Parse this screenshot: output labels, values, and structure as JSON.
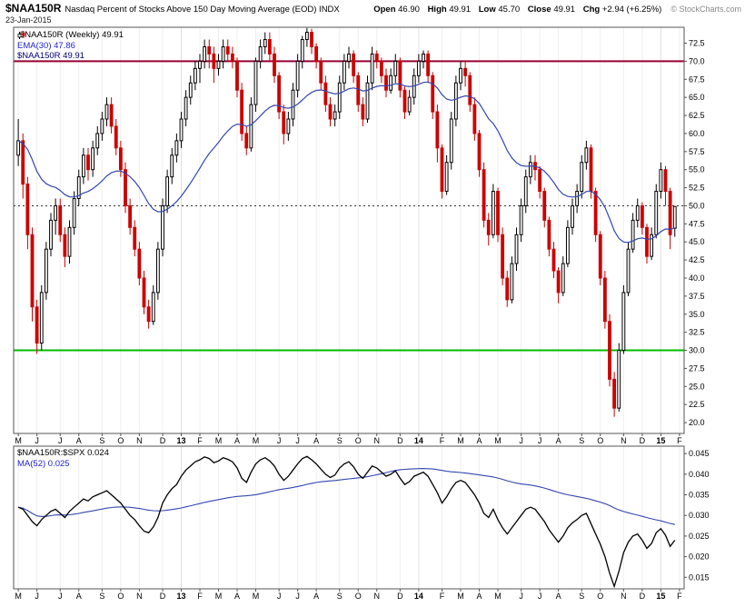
{
  "header": {
    "symbol": "$NAA150R",
    "title": "Nasdaq Percent of Stocks Above 150 Day Moving Average (EOD) INDX",
    "date": "23-Jan-2015",
    "copyright": "© StockCharts.com",
    "quote": {
      "open_label": "Open",
      "open": "46.90",
      "high_label": "High",
      "high": "49.91",
      "low_label": "Low",
      "low": "45.70",
      "close_label": "Close",
      "close": "49.91",
      "chg_label": "Chg",
      "chg": "+2.94 (+6.25%)"
    }
  },
  "main_panel": {
    "legend": [
      {
        "text": "$NAA150R (Weekly) 49.91",
        "color": "#000000"
      },
      {
        "text": "EMA(30) 47.86",
        "color": "#2222cc"
      },
      {
        "text": "$NAA150R 49.91",
        "color": "#000077"
      }
    ]
  },
  "ratio_panel": {
    "legend": [
      {
        "text": "$NAA150R:$SPX 0.024",
        "color": "#000000"
      },
      {
        "text": "MA(52) 0.025",
        "color": "#2222cc"
      }
    ]
  },
  "months": [
    {
      "label": "M",
      "week": 0
    },
    {
      "label": "J",
      "week": 4
    },
    {
      "label": "J",
      "week": 9
    },
    {
      "label": "A",
      "week": 13
    },
    {
      "label": "S",
      "week": 18
    },
    {
      "label": "O",
      "week": 22
    },
    {
      "label": "N",
      "week": 26
    },
    {
      "label": "D",
      "week": 31
    },
    {
      "label": "13",
      "week": 35,
      "bold": true
    },
    {
      "label": "F",
      "week": 39
    },
    {
      "label": "M",
      "week": 43
    },
    {
      "label": "A",
      "week": 47
    },
    {
      "label": "M",
      "week": 51
    },
    {
      "label": "J",
      "week": 56
    },
    {
      "label": "J",
      "week": 60
    },
    {
      "label": "A",
      "week": 64
    },
    {
      "label": "S",
      "week": 69
    },
    {
      "label": "O",
      "week": 73
    },
    {
      "label": "N",
      "week": 77
    },
    {
      "label": "D",
      "week": 82
    },
    {
      "label": "14",
      "week": 86,
      "bold": true
    },
    {
      "label": "F",
      "week": 91
    },
    {
      "label": "M",
      "week": 95
    },
    {
      "label": "A",
      "week": 99
    },
    {
      "label": "M",
      "week": 103
    },
    {
      "label": "J",
      "week": 108
    },
    {
      "label": "J",
      "week": 112
    },
    {
      "label": "A",
      "week": 116
    },
    {
      "label": "S",
      "week": 121
    },
    {
      "label": "O",
      "week": 125
    },
    {
      "label": "N",
      "week": 130
    },
    {
      "label": "D",
      "week": 134
    },
    {
      "label": "15",
      "week": 138,
      "bold": true
    },
    {
      "label": "F",
      "week": 142
    }
  ],
  "chart_data": [
    {
      "type": "candlestick",
      "name": "$NAA150R Weekly",
      "last_close": 49.91,
      "ema_period": 30,
      "ema_last": 47.86,
      "ylim": [
        18.5,
        74.7
      ],
      "yticks": [
        72.5,
        70.0,
        67.5,
        65.0,
        62.5,
        60.0,
        57.5,
        55.0,
        52.5,
        50.0,
        47.5,
        45.0,
        42.5,
        40.0,
        37.5,
        35.0,
        32.5,
        30.0,
        27.5,
        25.0,
        22.5,
        20.0
      ],
      "hlines": [
        {
          "value": 70,
          "color": "#990033",
          "width": 2,
          "dash": ""
        },
        {
          "value": 50,
          "color": "#333333",
          "width": 1,
          "dash": "2,3"
        },
        {
          "value": 30,
          "color": "#00bb00",
          "width": 2,
          "dash": ""
        }
      ],
      "colors": {
        "up": "#000000",
        "up_fill": "#ffffff",
        "down": "#cc0000",
        "ema": "#3347b0"
      },
      "ohlc": [
        [
          57,
          62,
          55.5,
          59
        ],
        [
          59,
          60,
          51,
          53
        ],
        [
          53,
          54,
          44,
          46
        ],
        [
          46,
          47,
          34,
          36
        ],
        [
          36,
          37,
          29.5,
          31
        ],
        [
          31,
          39,
          30,
          38
        ],
        [
          38,
          45,
          37,
          44
        ],
        [
          44,
          49,
          43,
          48
        ],
        [
          48,
          51,
          46,
          50
        ],
        [
          50,
          51,
          45,
          46
        ],
        [
          46,
          47,
          41.5,
          43
        ],
        [
          43,
          48,
          42,
          47
        ],
        [
          47,
          52,
          46,
          51
        ],
        [
          51,
          55,
          50,
          54
        ],
        [
          54,
          58,
          53,
          57
        ],
        [
          57,
          58,
          53.5,
          55
        ],
        [
          55,
          59,
          54,
          58
        ],
        [
          58,
          61,
          57,
          60
        ],
        [
          60,
          63,
          59,
          62
        ],
        [
          62,
          65,
          61,
          64
        ],
        [
          64,
          65,
          60,
          61
        ],
        [
          61,
          62,
          57,
          58
        ],
        [
          58,
          59,
          54,
          55
        ],
        [
          55,
          56,
          49,
          50
        ],
        [
          50,
          51,
          46,
          47
        ],
        [
          47,
          48,
          43,
          44
        ],
        [
          44,
          45,
          39,
          40
        ],
        [
          40,
          41,
          35,
          36
        ],
        [
          36,
          37,
          33,
          34
        ],
        [
          34,
          39,
          33.5,
          38
        ],
        [
          38,
          45,
          37,
          44
        ],
        [
          44,
          51,
          43,
          50
        ],
        [
          50,
          55,
          49,
          54
        ],
        [
          54,
          58,
          53,
          57
        ],
        [
          57,
          60,
          56,
          59
        ],
        [
          59,
          63,
          58,
          62
        ],
        [
          62,
          66,
          61,
          65
        ],
        [
          65,
          68,
          64,
          67
        ],
        [
          67,
          70,
          66,
          69
        ],
        [
          69,
          71,
          67,
          70
        ],
        [
          70,
          73,
          69,
          72
        ],
        [
          72,
          73,
          69,
          71
        ],
        [
          71,
          72,
          67,
          69
        ],
        [
          69,
          71,
          68,
          70
        ],
        [
          70,
          73,
          69,
          72
        ],
        [
          72,
          73,
          70,
          71
        ],
        [
          71,
          72,
          69,
          70
        ],
        [
          70,
          70.5,
          65,
          66
        ],
        [
          66,
          67,
          59,
          60
        ],
        [
          60,
          61,
          57,
          58
        ],
        [
          58,
          65,
          57.5,
          64
        ],
        [
          64,
          70.5,
          63,
          70
        ],
        [
          70,
          73,
          69,
          72
        ],
        [
          72,
          74,
          71,
          73
        ],
        [
          73,
          74,
          70,
          71
        ],
        [
          71,
          72,
          67,
          68
        ],
        [
          68,
          68.5,
          62,
          63
        ],
        [
          63,
          64,
          58.5,
          60
        ],
        [
          60,
          63,
          59,
          62
        ],
        [
          62,
          67,
          61,
          66
        ],
        [
          66,
          71,
          65,
          70
        ],
        [
          70,
          73.5,
          69,
          73
        ],
        [
          73,
          74.6,
          72,
          74
        ],
        [
          74,
          74.5,
          71,
          72
        ],
        [
          72,
          72.5,
          69,
          70
        ],
        [
          70,
          70.5,
          66,
          67
        ],
        [
          67,
          68,
          63,
          64
        ],
        [
          64,
          65,
          61,
          62
        ],
        [
          62,
          64,
          61,
          63
        ],
        [
          63,
          68,
          62,
          67
        ],
        [
          67,
          71,
          66,
          70
        ],
        [
          70,
          72,
          69,
          71
        ],
        [
          71,
          71.5,
          67,
          68
        ],
        [
          68,
          68.5,
          63,
          64
        ],
        [
          64,
          65,
          61,
          62
        ],
        [
          62,
          68,
          61.5,
          67
        ],
        [
          67,
          72,
          66,
          71
        ],
        [
          71,
          71.5,
          69,
          70
        ],
        [
          70,
          70.5,
          67,
          68
        ],
        [
          68,
          69,
          65,
          66
        ],
        [
          66,
          69,
          65.5,
          68
        ],
        [
          68,
          71,
          67,
          70
        ],
        [
          70,
          70.5,
          65,
          66
        ],
        [
          66,
          66.5,
          62,
          63
        ],
        [
          63,
          66,
          62.5,
          65
        ],
        [
          65,
          69,
          64,
          68
        ],
        [
          68,
          71,
          67,
          70
        ],
        [
          70,
          71.5,
          69,
          71
        ],
        [
          71,
          71.5,
          67,
          68
        ],
        [
          68,
          68.5,
          62,
          63
        ],
        [
          63,
          64,
          56,
          58
        ],
        [
          58,
          58.5,
          51,
          52
        ],
        [
          52,
          57,
          51.5,
          56
        ],
        [
          56,
          63,
          55,
          62
        ],
        [
          62,
          68,
          61,
          67
        ],
        [
          67,
          70,
          66,
          69
        ],
        [
          69,
          70,
          66.5,
          68
        ],
        [
          68,
          68.5,
          63,
          64
        ],
        [
          64,
          65,
          59,
          60
        ],
        [
          60,
          60.5,
          54,
          55
        ],
        [
          55,
          56,
          47,
          48
        ],
        [
          48,
          49,
          44.5,
          46
        ],
        [
          46,
          53,
          45.5,
          52
        ],
        [
          52,
          52.5,
          45,
          46
        ],
        [
          46,
          47,
          39,
          40
        ],
        [
          40,
          41,
          36,
          37
        ],
        [
          37,
          43,
          36.5,
          42
        ],
        [
          42,
          47,
          41,
          46
        ],
        [
          46,
          51,
          45,
          50
        ],
        [
          50,
          55,
          49,
          54
        ],
        [
          54,
          57,
          53,
          56
        ],
        [
          56,
          57,
          53.5,
          55
        ],
        [
          55,
          55.5,
          51,
          52
        ],
        [
          52,
          52.5,
          47,
          48
        ],
        [
          48,
          48.5,
          43,
          44
        ],
        [
          44,
          45,
          40,
          41
        ],
        [
          41,
          41.5,
          36.5,
          38
        ],
        [
          38,
          43,
          37.5,
          42
        ],
        [
          42,
          48,
          41.5,
          47
        ],
        [
          47,
          51,
          46,
          50
        ],
        [
          50,
          53,
          49,
          52
        ],
        [
          52,
          57,
          51,
          56
        ],
        [
          56,
          59,
          55,
          58
        ],
        [
          58,
          58.5,
          51,
          52
        ],
        [
          52,
          52.5,
          45,
          46
        ],
        [
          46,
          46.5,
          39,
          40
        ],
        [
          40,
          41,
          33,
          34
        ],
        [
          34,
          35,
          25,
          26
        ],
        [
          26,
          27,
          20.8,
          22
        ],
        [
          22,
          31,
          21.5,
          30
        ],
        [
          30,
          39,
          29.5,
          38
        ],
        [
          38,
          45,
          37.5,
          44
        ],
        [
          44,
          49,
          43.5,
          48
        ],
        [
          48,
          51,
          47,
          50
        ],
        [
          50,
          50.5,
          46,
          47
        ],
        [
          47,
          47.5,
          42,
          43
        ],
        [
          43,
          47,
          42.5,
          46
        ],
        [
          46,
          53,
          45.5,
          52
        ],
        [
          52,
          56,
          51,
          55
        ],
        [
          55,
          55.5,
          50,
          52
        ],
        [
          52,
          52.5,
          44,
          46
        ],
        [
          46.9,
          49.91,
          45.7,
          49.91
        ]
      ]
    },
    {
      "type": "line",
      "name": "$NAA150R:$SPX",
      "last": 0.024,
      "ma_period": 52,
      "ma_last": 0.025,
      "ylim": [
        0.0122,
        0.0468
      ],
      "yticks": [
        0.045,
        0.04,
        0.035,
        0.03,
        0.025,
        0.02,
        0.015
      ],
      "colors": {
        "line": "#000000",
        "ma": "#3347b0"
      },
      "values": [
        0.032,
        0.0315,
        0.03,
        0.0285,
        0.0275,
        0.029,
        0.03,
        0.031,
        0.0315,
        0.0305,
        0.0295,
        0.031,
        0.032,
        0.033,
        0.034,
        0.0335,
        0.0345,
        0.035,
        0.0355,
        0.036,
        0.035,
        0.034,
        0.033,
        0.0315,
        0.03,
        0.029,
        0.0275,
        0.0262,
        0.0258,
        0.0272,
        0.0295,
        0.033,
        0.035,
        0.0365,
        0.0375,
        0.0395,
        0.041,
        0.042,
        0.043,
        0.0435,
        0.0442,
        0.0438,
        0.0428,
        0.0432,
        0.044,
        0.0436,
        0.043,
        0.0415,
        0.039,
        0.038,
        0.0405,
        0.0425,
        0.0435,
        0.044,
        0.0432,
        0.042,
        0.04,
        0.0385,
        0.0395,
        0.041,
        0.0425,
        0.0438,
        0.0443,
        0.0435,
        0.0425,
        0.0412,
        0.04,
        0.0392,
        0.0398,
        0.0415,
        0.0425,
        0.043,
        0.0418,
        0.04,
        0.039,
        0.0405,
        0.042,
        0.0415,
        0.0405,
        0.0395,
        0.04,
        0.0408,
        0.039,
        0.0375,
        0.0382,
        0.0395,
        0.04,
        0.0405,
        0.0395,
        0.0375,
        0.0355,
        0.033,
        0.0345,
        0.0365,
        0.038,
        0.0385,
        0.038,
        0.0365,
        0.035,
        0.033,
        0.0305,
        0.0295,
        0.0315,
        0.029,
        0.027,
        0.0255,
        0.027,
        0.0285,
        0.03,
        0.0315,
        0.032,
        0.0315,
        0.03,
        0.0285,
        0.0265,
        0.025,
        0.0235,
        0.025,
        0.027,
        0.0282,
        0.029,
        0.03,
        0.0305,
        0.028,
        0.0255,
        0.023,
        0.02,
        0.016,
        0.0128,
        0.0165,
        0.021,
        0.0235,
        0.025,
        0.0255,
        0.024,
        0.022,
        0.0232,
        0.0258,
        0.0268,
        0.0252,
        0.0225,
        0.024
      ]
    }
  ]
}
